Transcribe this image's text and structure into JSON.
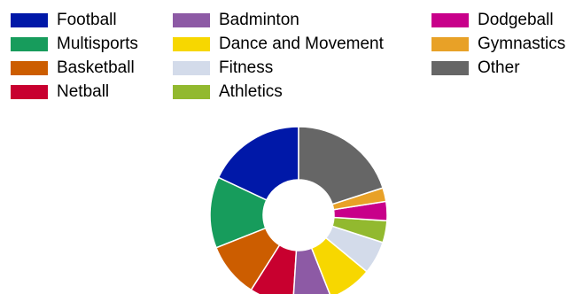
{
  "chart_data": {
    "type": "pie",
    "style": "donut",
    "legend_position": "top",
    "categories": [
      "Football",
      "Multisports",
      "Basketball",
      "Netball",
      "Badminton",
      "Dance and Movement",
      "Fitness",
      "Athletics",
      "Dodgeball",
      "Gymnastics",
      "Other"
    ],
    "values": [
      18,
      13,
      10,
      8,
      7,
      8,
      6,
      4,
      3.5,
      2.5,
      20
    ],
    "colors": [
      "#0018a8",
      "#179c5c",
      "#cc5d00",
      "#c8002f",
      "#8d5aa5",
      "#f7d700",
      "#d3dbea",
      "#92b92f",
      "#c8008a",
      "#e8a127",
      "#666666"
    ]
  }
}
